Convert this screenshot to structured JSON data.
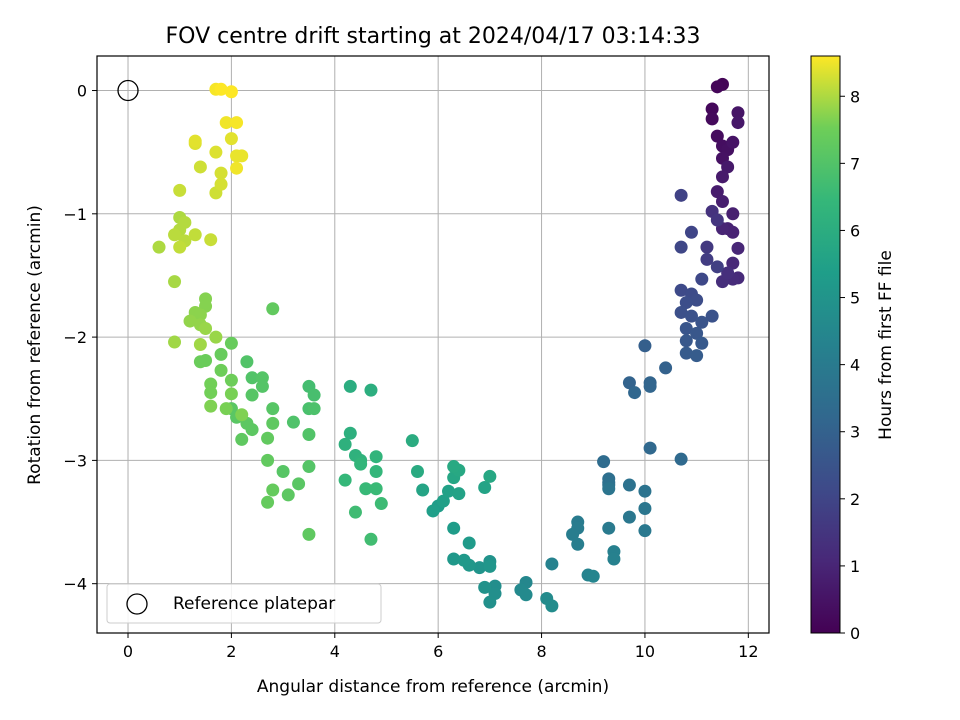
{
  "chart_data": {
    "type": "scatter",
    "title": "FOV centre drift starting at 2024/04/17 03:14:33",
    "xlabel": "Angular distance from reference (arcmin)",
    "ylabel": "Rotation from reference (arcmin)",
    "xlim": [
      -0.6,
      12.4
    ],
    "ylim": [
      -4.4,
      0.28
    ],
    "xticks": [
      0,
      2,
      4,
      6,
      8,
      10,
      12
    ],
    "yticks": [
      0,
      -1,
      -2,
      -3,
      -4
    ],
    "grid": true,
    "colormap": "viridis",
    "colorbar": {
      "label": "Hours from first FF file",
      "range": [
        0,
        8.6
      ],
      "ticks": [
        0,
        1,
        2,
        3,
        4,
        5,
        6,
        7,
        8
      ]
    },
    "reference": {
      "x": 0,
      "y": 0,
      "name": "Reference platepar"
    },
    "legend": {
      "location": "lower-left",
      "entries": [
        "Reference platepar"
      ]
    },
    "points": [
      {
        "x": 11.5,
        "y": 0.05,
        "h": 0.1
      },
      {
        "x": 11.4,
        "y": 0.03,
        "h": 0.15
      },
      {
        "x": 11.3,
        "y": -0.15,
        "h": 0.2
      },
      {
        "x": 11.3,
        "y": -0.23,
        "h": 0.25
      },
      {
        "x": 11.4,
        "y": -0.37,
        "h": 0.3
      },
      {
        "x": 11.5,
        "y": -0.45,
        "h": 0.35
      },
      {
        "x": 11.6,
        "y": -0.48,
        "h": 0.4
      },
      {
        "x": 11.5,
        "y": -0.55,
        "h": 0.45
      },
      {
        "x": 11.7,
        "y": -0.42,
        "h": 0.5
      },
      {
        "x": 11.8,
        "y": -0.18,
        "h": 0.55
      },
      {
        "x": 11.8,
        "y": -0.26,
        "h": 0.6
      },
      {
        "x": 11.6,
        "y": -0.62,
        "h": 0.65
      },
      {
        "x": 11.5,
        "y": -0.7,
        "h": 0.7
      },
      {
        "x": 11.4,
        "y": -0.82,
        "h": 0.75
      },
      {
        "x": 11.5,
        "y": -0.9,
        "h": 0.8
      },
      {
        "x": 11.7,
        "y": -1.0,
        "h": 0.85
      },
      {
        "x": 11.6,
        "y": -1.12,
        "h": 0.9
      },
      {
        "x": 11.7,
        "y": -1.15,
        "h": 0.95
      },
      {
        "x": 11.5,
        "y": -1.12,
        "h": 1.0
      },
      {
        "x": 11.8,
        "y": -1.28,
        "h": 1.05
      },
      {
        "x": 11.7,
        "y": -1.4,
        "h": 1.1
      },
      {
        "x": 11.8,
        "y": -1.52,
        "h": 1.15
      },
      {
        "x": 11.7,
        "y": -1.53,
        "h": 1.2
      },
      {
        "x": 11.5,
        "y": -1.55,
        "h": 1.25
      },
      {
        "x": 11.6,
        "y": -1.48,
        "h": 1.3
      },
      {
        "x": 11.3,
        "y": -0.98,
        "h": 1.4
      },
      {
        "x": 11.4,
        "y": -1.05,
        "h": 1.5
      },
      {
        "x": 11.2,
        "y": -1.27,
        "h": 1.6
      },
      {
        "x": 11.2,
        "y": -1.37,
        "h": 1.7
      },
      {
        "x": 11.4,
        "y": -1.43,
        "h": 1.8
      },
      {
        "x": 10.7,
        "y": -0.85,
        "h": 1.9
      },
      {
        "x": 10.9,
        "y": -1.15,
        "h": 2.0
      },
      {
        "x": 10.7,
        "y": -1.27,
        "h": 2.05
      },
      {
        "x": 11.1,
        "y": -1.53,
        "h": 2.1
      },
      {
        "x": 10.7,
        "y": -1.62,
        "h": 2.15
      },
      {
        "x": 10.9,
        "y": -1.65,
        "h": 2.2
      },
      {
        "x": 11.0,
        "y": -1.7,
        "h": 2.25
      },
      {
        "x": 10.8,
        "y": -1.72,
        "h": 2.3
      },
      {
        "x": 10.7,
        "y": -1.8,
        "h": 2.35
      },
      {
        "x": 10.9,
        "y": -1.83,
        "h": 2.4
      },
      {
        "x": 11.3,
        "y": -1.83,
        "h": 2.45
      },
      {
        "x": 11.1,
        "y": -1.88,
        "h": 2.5
      },
      {
        "x": 10.8,
        "y": -1.93,
        "h": 2.55
      },
      {
        "x": 11.0,
        "y": -1.97,
        "h": 2.6
      },
      {
        "x": 10.8,
        "y": -2.03,
        "h": 2.65
      },
      {
        "x": 11.1,
        "y": -2.05,
        "h": 2.7
      },
      {
        "x": 10.8,
        "y": -2.13,
        "h": 2.75
      },
      {
        "x": 11.0,
        "y": -2.15,
        "h": 2.8
      },
      {
        "x": 10.0,
        "y": -2.07,
        "h": 2.9
      },
      {
        "x": 10.4,
        "y": -2.25,
        "h": 3.0
      },
      {
        "x": 9.7,
        "y": -2.37,
        "h": 3.05
      },
      {
        "x": 10.1,
        "y": -2.37,
        "h": 3.1
      },
      {
        "x": 10.1,
        "y": -2.4,
        "h": 3.15
      },
      {
        "x": 9.8,
        "y": -2.45,
        "h": 3.2
      },
      {
        "x": 10.1,
        "y": -2.9,
        "h": 3.25
      },
      {
        "x": 10.7,
        "y": -2.99,
        "h": 3.3
      },
      {
        "x": 9.2,
        "y": -3.01,
        "h": 3.4
      },
      {
        "x": 9.3,
        "y": -3.15,
        "h": 3.5
      },
      {
        "x": 9.3,
        "y": -3.18,
        "h": 3.55
      },
      {
        "x": 9.3,
        "y": -3.2,
        "h": 3.6
      },
      {
        "x": 9.7,
        "y": -3.2,
        "h": 3.65
      },
      {
        "x": 10.0,
        "y": -3.25,
        "h": 3.7
      },
      {
        "x": 9.3,
        "y": -3.23,
        "h": 3.75
      },
      {
        "x": 10.0,
        "y": -3.39,
        "h": 3.8
      },
      {
        "x": 9.7,
        "y": -3.46,
        "h": 3.85
      },
      {
        "x": 10.0,
        "y": -3.57,
        "h": 3.9
      },
      {
        "x": 9.3,
        "y": -3.55,
        "h": 3.95
      },
      {
        "x": 8.7,
        "y": -3.5,
        "h": 4.0
      },
      {
        "x": 8.7,
        "y": -3.55,
        "h": 4.05
      },
      {
        "x": 8.6,
        "y": -3.6,
        "h": 4.1
      },
      {
        "x": 8.7,
        "y": -3.68,
        "h": 4.15
      },
      {
        "x": 9.4,
        "y": -3.74,
        "h": 4.2
      },
      {
        "x": 9.4,
        "y": -3.8,
        "h": 4.25
      },
      {
        "x": 8.2,
        "y": -3.84,
        "h": 4.3
      },
      {
        "x": 8.9,
        "y": -3.93,
        "h": 4.35
      },
      {
        "x": 9.0,
        "y": -3.94,
        "h": 4.4
      },
      {
        "x": 7.7,
        "y": -3.99,
        "h": 4.5
      },
      {
        "x": 7.6,
        "y": -4.05,
        "h": 4.55
      },
      {
        "x": 7.7,
        "y": -4.09,
        "h": 4.6
      },
      {
        "x": 8.1,
        "y": -4.12,
        "h": 4.65
      },
      {
        "x": 8.2,
        "y": -4.18,
        "h": 4.7
      },
      {
        "x": 7.1,
        "y": -4.02,
        "h": 4.75
      },
      {
        "x": 7.1,
        "y": -4.08,
        "h": 4.8
      },
      {
        "x": 7.0,
        "y": -4.15,
        "h": 4.85
      },
      {
        "x": 6.9,
        "y": -4.03,
        "h": 4.9
      },
      {
        "x": 7.0,
        "y": -3.82,
        "h": 4.95
      },
      {
        "x": 6.8,
        "y": -3.87,
        "h": 5.0
      },
      {
        "x": 7.0,
        "y": -3.86,
        "h": 5.05
      },
      {
        "x": 6.6,
        "y": -3.85,
        "h": 5.1
      },
      {
        "x": 6.3,
        "y": -3.8,
        "h": 5.15
      },
      {
        "x": 6.5,
        "y": -3.81,
        "h": 5.2
      },
      {
        "x": 6.6,
        "y": -3.67,
        "h": 5.25
      },
      {
        "x": 6.3,
        "y": -3.55,
        "h": 5.3
      },
      {
        "x": 6.0,
        "y": -3.37,
        "h": 5.35
      },
      {
        "x": 5.9,
        "y": -3.41,
        "h": 5.4
      },
      {
        "x": 6.1,
        "y": -3.33,
        "h": 5.45
      },
      {
        "x": 6.2,
        "y": -3.25,
        "h": 5.5
      },
      {
        "x": 6.4,
        "y": -3.27,
        "h": 5.55
      },
      {
        "x": 6.9,
        "y": -3.22,
        "h": 5.6
      },
      {
        "x": 5.7,
        "y": -3.24,
        "h": 5.65
      },
      {
        "x": 6.3,
        "y": -3.14,
        "h": 5.7
      },
      {
        "x": 7.0,
        "y": -3.13,
        "h": 5.75
      },
      {
        "x": 6.4,
        "y": -3.08,
        "h": 5.8
      },
      {
        "x": 6.3,
        "y": -3.05,
        "h": 5.85
      },
      {
        "x": 5.6,
        "y": -3.09,
        "h": 5.9
      },
      {
        "x": 5.5,
        "y": -2.84,
        "h": 5.95
      },
      {
        "x": 4.3,
        "y": -2.4,
        "h": 6.0
      },
      {
        "x": 4.7,
        "y": -2.43,
        "h": 6.05
      },
      {
        "x": 4.3,
        "y": -2.78,
        "h": 6.1
      },
      {
        "x": 4.2,
        "y": -2.87,
        "h": 6.15
      },
      {
        "x": 4.4,
        "y": -2.96,
        "h": 6.2
      },
      {
        "x": 4.5,
        "y": -3.0,
        "h": 6.25
      },
      {
        "x": 4.8,
        "y": -2.97,
        "h": 6.3
      },
      {
        "x": 4.5,
        "y": -3.03,
        "h": 6.35
      },
      {
        "x": 4.8,
        "y": -3.09,
        "h": 6.4
      },
      {
        "x": 4.2,
        "y": -3.16,
        "h": 6.45
      },
      {
        "x": 4.6,
        "y": -3.23,
        "h": 6.5
      },
      {
        "x": 4.8,
        "y": -3.23,
        "h": 6.55
      },
      {
        "x": 4.9,
        "y": -3.35,
        "h": 6.6
      },
      {
        "x": 4.4,
        "y": -3.42,
        "h": 6.65
      },
      {
        "x": 4.7,
        "y": -3.64,
        "h": 6.7
      },
      {
        "x": 3.5,
        "y": -2.4,
        "h": 6.75
      },
      {
        "x": 3.6,
        "y": -2.47,
        "h": 6.8
      },
      {
        "x": 3.5,
        "y": -2.58,
        "h": 6.85
      },
      {
        "x": 3.6,
        "y": -2.58,
        "h": 6.9
      },
      {
        "x": 3.2,
        "y": -2.69,
        "h": 6.95
      },
      {
        "x": 3.5,
        "y": -2.79,
        "h": 7.0
      },
      {
        "x": 3.5,
        "y": -3.05,
        "h": 7.05
      },
      {
        "x": 3.0,
        "y": -3.09,
        "h": 7.1
      },
      {
        "x": 3.3,
        "y": -3.19,
        "h": 7.15
      },
      {
        "x": 3.1,
        "y": -3.28,
        "h": 7.2
      },
      {
        "x": 3.5,
        "y": -3.6,
        "h": 7.25
      },
      {
        "x": 2.8,
        "y": -1.77,
        "h": 7.3
      }
    ],
    "points_b": [
      {
        "x": 2.3,
        "y": -2.2,
        "h": 7.0
      },
      {
        "x": 2.4,
        "y": -2.33,
        "h": 7.0
      },
      {
        "x": 2.6,
        "y": -2.33,
        "h": 7.05
      },
      {
        "x": 2.6,
        "y": -2.4,
        "h": 7.05
      },
      {
        "x": 2.4,
        "y": -2.47,
        "h": 7.1
      },
      {
        "x": 2.8,
        "y": -2.58,
        "h": 7.1
      },
      {
        "x": 2.0,
        "y": -2.58,
        "h": 7.15
      },
      {
        "x": 2.1,
        "y": -2.65,
        "h": 7.15
      },
      {
        "x": 2.3,
        "y": -2.7,
        "h": 7.2
      },
      {
        "x": 2.4,
        "y": -2.75,
        "h": 7.2
      },
      {
        "x": 2.8,
        "y": -2.7,
        "h": 7.25
      },
      {
        "x": 2.2,
        "y": -2.83,
        "h": 7.25
      },
      {
        "x": 2.7,
        "y": -2.82,
        "h": 7.3
      },
      {
        "x": 2.7,
        "y": -3.0,
        "h": 7.3
      },
      {
        "x": 2.8,
        "y": -3.24,
        "h": 7.35
      },
      {
        "x": 2.7,
        "y": -3.34,
        "h": 7.35
      },
      {
        "x": 2.0,
        "y": -2.05,
        "h": 7.4
      },
      {
        "x": 1.8,
        "y": -2.14,
        "h": 7.4
      },
      {
        "x": 1.5,
        "y": -2.19,
        "h": 7.45
      },
      {
        "x": 1.4,
        "y": -2.2,
        "h": 7.45
      },
      {
        "x": 1.8,
        "y": -2.27,
        "h": 7.5
      },
      {
        "x": 2.0,
        "y": -2.35,
        "h": 7.5
      },
      {
        "x": 1.6,
        "y": -2.38,
        "h": 7.55
      },
      {
        "x": 1.6,
        "y": -2.45,
        "h": 7.55
      },
      {
        "x": 2.0,
        "y": -2.46,
        "h": 7.6
      },
      {
        "x": 1.9,
        "y": -2.58,
        "h": 7.6
      },
      {
        "x": 1.6,
        "y": -2.56,
        "h": 7.65
      },
      {
        "x": 2.2,
        "y": -2.63,
        "h": 7.65
      },
      {
        "x": 1.5,
        "y": -1.69,
        "h": 7.7
      },
      {
        "x": 1.5,
        "y": -1.75,
        "h": 7.7
      },
      {
        "x": 1.3,
        "y": -1.8,
        "h": 7.75
      },
      {
        "x": 1.4,
        "y": -1.82,
        "h": 7.75
      },
      {
        "x": 1.2,
        "y": -1.87,
        "h": 7.8
      },
      {
        "x": 1.4,
        "y": -1.9,
        "h": 7.8
      },
      {
        "x": 1.5,
        "y": -1.93,
        "h": 7.85
      },
      {
        "x": 1.7,
        "y": -2.0,
        "h": 7.85
      },
      {
        "x": 0.9,
        "y": -2.04,
        "h": 7.9
      },
      {
        "x": 1.4,
        "y": -2.06,
        "h": 7.9
      },
      {
        "x": 0.9,
        "y": -1.55,
        "h": 7.95
      },
      {
        "x": 0.6,
        "y": -1.27,
        "h": 8.0
      },
      {
        "x": 1.0,
        "y": -1.03,
        "h": 8.0
      },
      {
        "x": 1.1,
        "y": -1.07,
        "h": 8.05
      },
      {
        "x": 1.0,
        "y": -1.13,
        "h": 8.05
      },
      {
        "x": 0.9,
        "y": -1.17,
        "h": 8.1
      },
      {
        "x": 1.1,
        "y": -1.22,
        "h": 8.1
      },
      {
        "x": 1.0,
        "y": -1.27,
        "h": 8.15
      },
      {
        "x": 1.3,
        "y": -1.17,
        "h": 8.15
      },
      {
        "x": 1.6,
        "y": -1.21,
        "h": 8.2
      },
      {
        "x": 1.0,
        "y": -0.81,
        "h": 8.2
      },
      {
        "x": 1.4,
        "y": -0.62,
        "h": 8.25
      },
      {
        "x": 1.7,
        "y": -0.83,
        "h": 8.25
      },
      {
        "x": 1.8,
        "y": -0.76,
        "h": 8.3
      },
      {
        "x": 1.8,
        "y": -0.67,
        "h": 8.3
      },
      {
        "x": 1.7,
        "y": -0.5,
        "h": 8.35
      },
      {
        "x": 1.3,
        "y": -0.43,
        "h": 8.35
      },
      {
        "x": 1.3,
        "y": -0.41,
        "h": 8.4
      },
      {
        "x": 2.0,
        "y": -0.39,
        "h": 8.4
      },
      {
        "x": 2.1,
        "y": -0.53,
        "h": 8.45
      },
      {
        "x": 2.2,
        "y": -0.53,
        "h": 8.45
      },
      {
        "x": 2.1,
        "y": -0.63,
        "h": 8.5
      },
      {
        "x": 1.9,
        "y": -0.26,
        "h": 8.5
      },
      {
        "x": 2.1,
        "y": -0.26,
        "h": 8.55
      },
      {
        "x": 1.7,
        "y": 0.01,
        "h": 8.55
      },
      {
        "x": 1.8,
        "y": 0.01,
        "h": 8.6
      },
      {
        "x": 2.0,
        "y": -0.01,
        "h": 8.6
      }
    ]
  }
}
